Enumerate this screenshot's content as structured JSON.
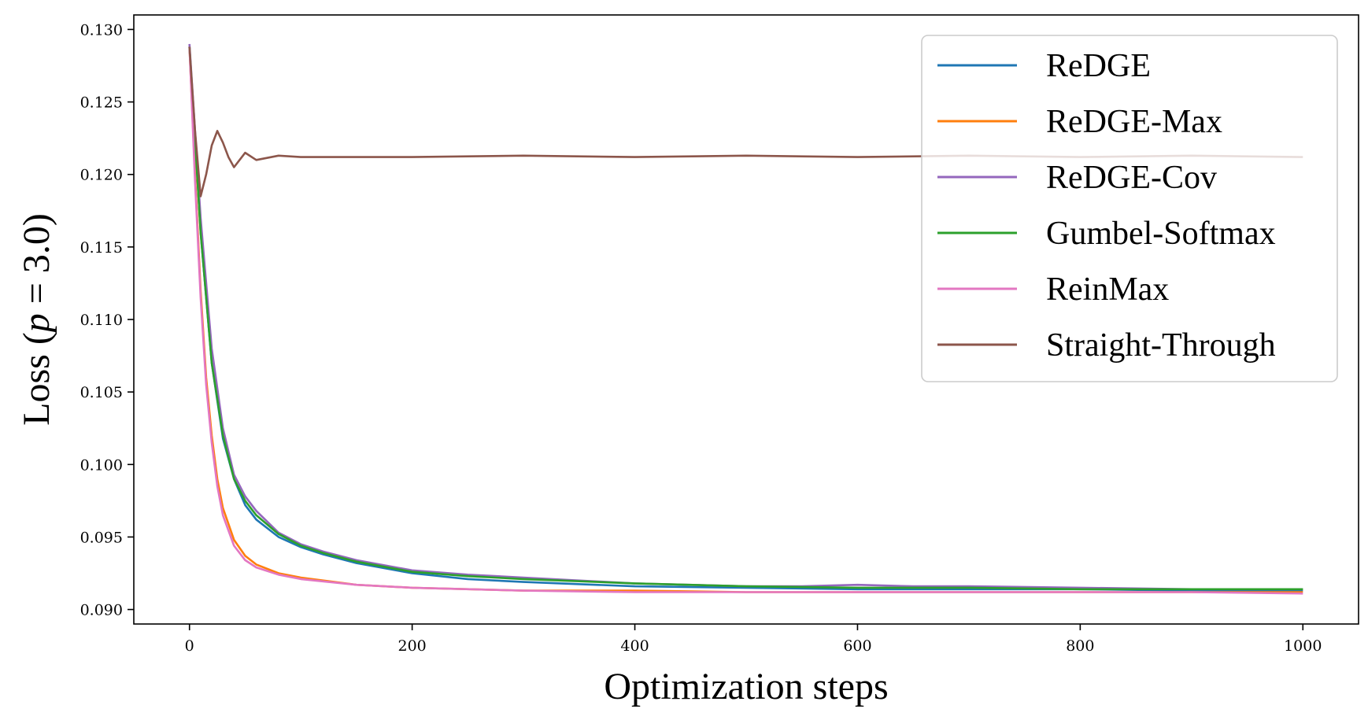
{
  "chart_data": {
    "type": "line",
    "title": "",
    "xlabel": "Optimization steps",
    "ylabel": "Loss (p = 3.0)",
    "ylabel_parts": {
      "prefix": "Loss (",
      "var": "p",
      "rest": " = 3.0)"
    },
    "xlim": [
      -50,
      1050
    ],
    "ylim": [
      0.089,
      0.131
    ],
    "xticks": [
      0,
      200,
      400,
      600,
      800,
      1000
    ],
    "xtick_labels": [
      "0",
      "200",
      "400",
      "600",
      "800",
      "1000"
    ],
    "yticks": [
      0.09,
      0.095,
      0.1,
      0.105,
      0.11,
      0.115,
      0.12,
      0.125,
      0.13
    ],
    "ytick_labels": [
      "0.090",
      "0.095",
      "0.100",
      "0.105",
      "0.110",
      "0.115",
      "0.120",
      "0.125",
      "0.130"
    ],
    "grid": false,
    "legend_position": "top-right",
    "series": [
      {
        "name": "ReDGE",
        "color": "#1f77b4",
        "x": [
          0,
          10,
          20,
          30,
          40,
          50,
          60,
          80,
          100,
          120,
          150,
          200,
          250,
          300,
          400,
          500,
          600,
          700,
          800,
          900,
          1000
        ],
        "y": [
          0.1288,
          0.116,
          0.107,
          0.1018,
          0.099,
          0.0972,
          0.0962,
          0.095,
          0.0943,
          0.0938,
          0.0932,
          0.0925,
          0.0921,
          0.0919,
          0.0916,
          0.0915,
          0.0914,
          0.0914,
          0.0914,
          0.0913,
          0.0913
        ]
      },
      {
        "name": "ReDGE-Max",
        "color": "#ff7f0e",
        "x": [
          0,
          5,
          10,
          15,
          20,
          25,
          30,
          40,
          50,
          60,
          80,
          100,
          150,
          200,
          300,
          400,
          500,
          600,
          700,
          800,
          900,
          1000
        ],
        "y": [
          0.1288,
          0.12,
          0.112,
          0.106,
          0.102,
          0.099,
          0.097,
          0.0948,
          0.0937,
          0.0931,
          0.0925,
          0.0922,
          0.0917,
          0.0915,
          0.0913,
          0.0913,
          0.0912,
          0.0912,
          0.0912,
          0.0912,
          0.0912,
          0.0912
        ]
      },
      {
        "name": "ReDGE-Cov",
        "color": "#9467bd",
        "x": [
          0,
          10,
          20,
          30,
          40,
          50,
          60,
          80,
          100,
          120,
          150,
          200,
          250,
          300,
          400,
          500,
          550,
          600,
          650,
          700,
          800,
          900,
          1000
        ],
        "y": [
          0.129,
          0.117,
          0.108,
          0.1025,
          0.0993,
          0.0978,
          0.0968,
          0.0953,
          0.0945,
          0.094,
          0.0934,
          0.0927,
          0.0924,
          0.0922,
          0.0918,
          0.0916,
          0.0916,
          0.0917,
          0.0916,
          0.0916,
          0.0915,
          0.0914,
          0.0914
        ]
      },
      {
        "name": "Gumbel-Softmax",
        "color": "#2ca02c",
        "x": [
          0,
          10,
          20,
          30,
          40,
          50,
          60,
          80,
          100,
          120,
          150,
          200,
          250,
          300,
          400,
          500,
          600,
          700,
          800,
          900,
          1000
        ],
        "y": [
          0.1288,
          0.116,
          0.107,
          0.102,
          0.099,
          0.0975,
          0.0965,
          0.0952,
          0.0944,
          0.0939,
          0.0933,
          0.0926,
          0.0923,
          0.0921,
          0.0918,
          0.0916,
          0.0915,
          0.0915,
          0.0914,
          0.0914,
          0.0914
        ]
      },
      {
        "name": "ReinMax",
        "color": "#e377c2",
        "x": [
          0,
          5,
          10,
          15,
          20,
          25,
          30,
          40,
          50,
          60,
          80,
          100,
          150,
          200,
          300,
          400,
          500,
          600,
          700,
          800,
          900,
          1000
        ],
        "y": [
          0.1288,
          0.1195,
          0.1115,
          0.1055,
          0.1015,
          0.0985,
          0.0965,
          0.0944,
          0.0934,
          0.0929,
          0.0924,
          0.0921,
          0.0917,
          0.0915,
          0.0913,
          0.0912,
          0.0912,
          0.0912,
          0.0912,
          0.0912,
          0.0912,
          0.0911
        ]
      },
      {
        "name": "Straight-Through",
        "color": "#8c564b",
        "x": [
          0,
          5,
          10,
          15,
          20,
          25,
          30,
          35,
          40,
          50,
          60,
          80,
          100,
          200,
          300,
          400,
          500,
          600,
          700,
          800,
          900,
          1000
        ],
        "y": [
          0.1288,
          0.123,
          0.1185,
          0.12,
          0.122,
          0.123,
          0.1222,
          0.1212,
          0.1205,
          0.1215,
          0.121,
          0.1213,
          0.1212,
          0.1212,
          0.1213,
          0.1212,
          0.1213,
          0.1212,
          0.1213,
          0.1212,
          0.1213,
          0.1212
        ]
      }
    ]
  }
}
